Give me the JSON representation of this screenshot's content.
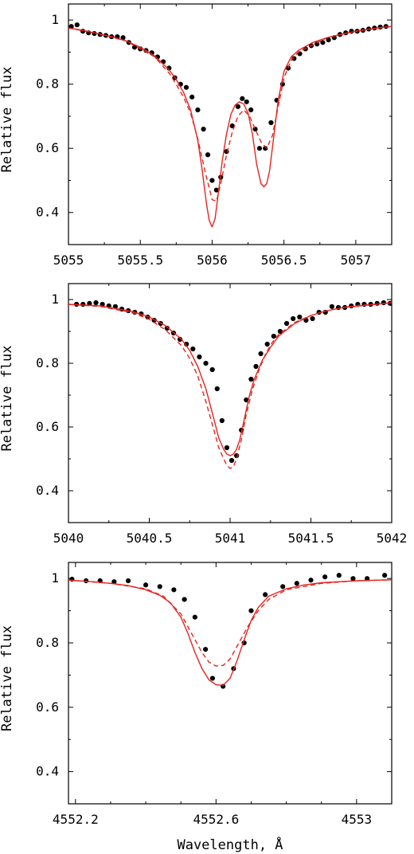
{
  "chart_data": [
    {
      "type": "line",
      "ylabel": "Relative flux",
      "xlabel": "",
      "xlim": [
        5055,
        5057.25
      ],
      "ylim": [
        0.3,
        1.05
      ],
      "xticks": [
        5055,
        5055.5,
        5056,
        5056.5,
        5057
      ],
      "xtick_labels": [
        "5055",
        "5055.5",
        "5056",
        "5056.5",
        "5057"
      ],
      "yticks": [
        0.4,
        0.6,
        0.8,
        1.0
      ],
      "ytick_labels": [
        "0.4",
        "0.6",
        "0.8",
        "1"
      ],
      "colors": {
        "model": "#e8231f",
        "observed": "#000000"
      },
      "series": [
        {
          "style": "points",
          "x": [
            5055.02,
            5055.06,
            5055.1,
            5055.14,
            5055.18,
            5055.22,
            5055.26,
            5055.3,
            5055.34,
            5055.38,
            5055.42,
            5055.46,
            5055.5,
            5055.54,
            5055.58,
            5055.62,
            5055.66,
            5055.7,
            5055.74,
            5055.78,
            5055.82,
            5055.86,
            5055.9,
            5055.94,
            5055.97,
            5056.0,
            5056.03,
            5056.06,
            5056.1,
            5056.14,
            5056.18,
            5056.21,
            5056.24,
            5056.27,
            5056.3,
            5056.33,
            5056.37,
            5056.41,
            5056.45,
            5056.49,
            5056.53,
            5056.57,
            5056.61,
            5056.65,
            5056.69,
            5056.73,
            5056.77,
            5056.81,
            5056.85,
            5056.89,
            5056.93,
            5056.97,
            5057.01,
            5057.05,
            5057.09,
            5057.13,
            5057.17,
            5057.21
          ],
          "y": [
            0.98,
            0.985,
            0.965,
            0.96,
            0.958,
            0.955,
            0.952,
            0.948,
            0.948,
            0.945,
            0.93,
            0.915,
            0.91,
            0.905,
            0.898,
            0.885,
            0.87,
            0.85,
            0.82,
            0.8,
            0.79,
            0.76,
            0.72,
            0.66,
            0.58,
            0.5,
            0.47,
            0.51,
            0.59,
            0.67,
            0.73,
            0.755,
            0.745,
            0.72,
            0.66,
            0.6,
            0.6,
            0.68,
            0.75,
            0.8,
            0.85,
            0.88,
            0.895,
            0.91,
            0.92,
            0.925,
            0.93,
            0.938,
            0.945,
            0.955,
            0.96,
            0.965,
            0.965,
            0.968,
            0.972,
            0.975,
            0.978,
            0.98
          ]
        },
        {
          "style": "solid",
          "x": [
            5055.0,
            5055.1,
            5055.2,
            5055.3,
            5055.4,
            5055.5,
            5055.6,
            5055.7,
            5055.75,
            5055.8,
            5055.85,
            5055.9,
            5055.93,
            5055.96,
            5055.98,
            5056.0,
            5056.02,
            5056.04,
            5056.07,
            5056.1,
            5056.13,
            5056.16,
            5056.19,
            5056.22,
            5056.25,
            5056.28,
            5056.31,
            5056.34,
            5056.36,
            5056.38,
            5056.4,
            5056.43,
            5056.46,
            5056.5,
            5056.55,
            5056.6,
            5056.7,
            5056.8,
            5056.9,
            5057.0,
            5057.1,
            5057.2,
            5057.25
          ],
          "y": [
            0.975,
            0.968,
            0.958,
            0.948,
            0.935,
            0.915,
            0.888,
            0.845,
            0.815,
            0.775,
            0.72,
            0.625,
            0.535,
            0.43,
            0.375,
            0.355,
            0.38,
            0.45,
            0.56,
            0.645,
            0.705,
            0.735,
            0.745,
            0.738,
            0.71,
            0.645,
            0.55,
            0.49,
            0.48,
            0.49,
            0.53,
            0.64,
            0.75,
            0.84,
            0.885,
            0.905,
            0.93,
            0.945,
            0.956,
            0.965,
            0.972,
            0.978,
            0.98
          ]
        },
        {
          "style": "dashed",
          "x": [
            5055.0,
            5055.2,
            5055.4,
            5055.6,
            5055.7,
            5055.75,
            5055.8,
            5055.85,
            5055.9,
            5055.95,
            5056.0,
            5056.03,
            5056.06,
            5056.1,
            5056.14,
            5056.18,
            5056.22,
            5056.26,
            5056.3,
            5056.34,
            5056.38,
            5056.42,
            5056.46,
            5056.5,
            5056.55,
            5056.6,
            5056.8,
            5057.0,
            5057.25
          ],
          "y": [
            0.975,
            0.958,
            0.935,
            0.885,
            0.835,
            0.8,
            0.76,
            0.71,
            0.63,
            0.53,
            0.44,
            0.435,
            0.49,
            0.58,
            0.65,
            0.7,
            0.72,
            0.7,
            0.66,
            0.62,
            0.6,
            0.64,
            0.73,
            0.82,
            0.875,
            0.9,
            0.945,
            0.965,
            0.98
          ]
        }
      ]
    },
    {
      "type": "line",
      "ylabel": "Relative flux",
      "xlabel": "",
      "xlim": [
        5040,
        5042
      ],
      "ylim": [
        0.3,
        1.05
      ],
      "xticks": [
        5040,
        5040.5,
        5041,
        5041.5,
        5042
      ],
      "xtick_labels": [
        "5040",
        "5040.5",
        "5041",
        "5041.5",
        "5042"
      ],
      "yticks": [
        0.4,
        0.6,
        0.8,
        1.0
      ],
      "ytick_labels": [
        "0.4",
        "0.6",
        "0.8",
        "1"
      ],
      "colors": {
        "model": "#e8231f",
        "observed": "#000000"
      },
      "series": [
        {
          "style": "points",
          "x": [
            5040.05,
            5040.09,
            5040.13,
            5040.17,
            5040.21,
            5040.25,
            5040.29,
            5040.33,
            5040.37,
            5040.41,
            5040.45,
            5040.49,
            5040.53,
            5040.57,
            5040.61,
            5040.65,
            5040.69,
            5040.73,
            5040.77,
            5040.81,
            5040.85,
            5040.89,
            5040.92,
            5040.95,
            5040.98,
            5041.01,
            5041.04,
            5041.07,
            5041.1,
            5041.13,
            5041.16,
            5041.19,
            5041.23,
            5041.27,
            5041.31,
            5041.35,
            5041.39,
            5041.43,
            5041.47,
            5041.51,
            5041.55,
            5041.59,
            5041.63,
            5041.67,
            5041.71,
            5041.75,
            5041.79,
            5041.83,
            5041.87,
            5041.91,
            5041.95,
            5041.99
          ],
          "y": [
            0.985,
            0.985,
            0.988,
            0.99,
            0.985,
            0.98,
            0.978,
            0.97,
            0.965,
            0.96,
            0.955,
            0.945,
            0.935,
            0.925,
            0.91,
            0.895,
            0.875,
            0.86,
            0.845,
            0.82,
            0.8,
            0.78,
            0.72,
            0.62,
            0.535,
            0.495,
            0.51,
            0.59,
            0.685,
            0.75,
            0.79,
            0.83,
            0.86,
            0.885,
            0.9,
            0.925,
            0.94,
            0.945,
            0.935,
            0.94,
            0.96,
            0.96,
            0.978,
            0.975,
            0.975,
            0.98,
            0.985,
            0.985,
            0.985,
            0.988,
            0.99,
            0.988
          ]
        },
        {
          "style": "solid",
          "x": [
            5040.0,
            5040.2,
            5040.4,
            5040.5,
            5040.6,
            5040.7,
            5040.75,
            5040.8,
            5040.85,
            5040.9,
            5040.93,
            5040.96,
            5040.98,
            5041.0,
            5041.02,
            5041.04,
            5041.06,
            5041.09,
            5041.12,
            5041.15,
            5041.2,
            5041.25,
            5041.3,
            5041.4,
            5041.5,
            5041.6,
            5041.7,
            5041.8,
            5041.9,
            5042.0
          ],
          "y": [
            0.985,
            0.98,
            0.962,
            0.945,
            0.918,
            0.875,
            0.84,
            0.79,
            0.72,
            0.625,
            0.565,
            0.53,
            0.515,
            0.51,
            0.515,
            0.53,
            0.56,
            0.63,
            0.7,
            0.75,
            0.81,
            0.85,
            0.885,
            0.925,
            0.95,
            0.965,
            0.975,
            0.98,
            0.985,
            0.99
          ]
        },
        {
          "style": "dashed",
          "x": [
            5040.0,
            5040.2,
            5040.4,
            5040.5,
            5040.6,
            5040.7,
            5040.75,
            5040.8,
            5040.85,
            5040.9,
            5040.93,
            5040.96,
            5040.98,
            5041.0,
            5041.02,
            5041.04,
            5041.07,
            5041.1,
            5041.14,
            5041.18,
            5041.22,
            5041.26,
            5041.3,
            5041.4,
            5041.5,
            5041.6,
            5041.7,
            5041.8,
            5041.9,
            5042.0
          ],
          "y": [
            0.985,
            0.978,
            0.958,
            0.938,
            0.905,
            0.855,
            0.815,
            0.76,
            0.68,
            0.59,
            0.535,
            0.5,
            0.48,
            0.47,
            0.475,
            0.5,
            0.56,
            0.64,
            0.72,
            0.78,
            0.83,
            0.865,
            0.89,
            0.928,
            0.95,
            0.965,
            0.975,
            0.982,
            0.985,
            0.99
          ]
        }
      ]
    },
    {
      "type": "line",
      "ylabel": "Relative flux",
      "xlabel": "Wavelength, Å",
      "xlim": [
        4552.18,
        4553.1
      ],
      "ylim": [
        0.3,
        1.05
      ],
      "xticks": [
        4552.2,
        4552.6,
        4553.0
      ],
      "xtick_labels": [
        "4552.2",
        "4552.6",
        "4553"
      ],
      "yticks": [
        0.4,
        0.6,
        0.8,
        1.0
      ],
      "ytick_labels": [
        "0.4",
        "0.6",
        "0.8",
        "1"
      ],
      "colors": {
        "model": "#e8231f",
        "observed": "#000000"
      },
      "series": [
        {
          "style": "points",
          "x": [
            4552.19,
            4552.23,
            4552.27,
            4552.31,
            4552.35,
            4552.4,
            4552.44,
            4552.48,
            4552.51,
            4552.54,
            4552.57,
            4552.59,
            4552.62,
            4552.65,
            4552.68,
            4552.7,
            4552.74,
            4552.79,
            4552.83,
            4552.87,
            4552.91,
            4552.95,
            4552.99,
            4553.03,
            4553.08
          ],
          "y": [
            0.998,
            0.993,
            0.993,
            0.99,
            0.993,
            0.98,
            0.975,
            0.965,
            0.935,
            0.88,
            0.78,
            0.69,
            0.665,
            0.72,
            0.8,
            0.9,
            0.95,
            0.975,
            0.985,
            0.995,
            1.005,
            1.01,
            1.0,
            1.0,
            1.01
          ]
        },
        {
          "style": "solid",
          "x": [
            4552.18,
            4552.25,
            4552.3,
            4552.35,
            4552.4,
            4552.44,
            4552.47,
            4552.5,
            4552.52,
            4552.54,
            4552.56,
            4552.58,
            4552.6,
            4552.62,
            4552.64,
            4552.66,
            4552.68,
            4552.7,
            4552.72,
            4552.75,
            4552.8,
            4552.85,
            4552.9,
            4552.95,
            4553.0,
            4553.1
          ],
          "y": [
            0.995,
            0.99,
            0.985,
            0.978,
            0.965,
            0.948,
            0.925,
            0.88,
            0.83,
            0.77,
            0.72,
            0.685,
            0.67,
            0.668,
            0.69,
            0.745,
            0.81,
            0.87,
            0.91,
            0.945,
            0.968,
            0.98,
            0.987,
            0.99,
            0.993,
            0.996
          ]
        },
        {
          "style": "dashed",
          "x": [
            4552.18,
            4552.3,
            4552.4,
            4552.45,
            4552.5,
            4552.53,
            4552.56,
            4552.58,
            4552.6,
            4552.62,
            4552.64,
            4552.66,
            4552.69,
            4552.72,
            4552.75,
            4552.8,
            4552.9,
            4553.0,
            4553.1
          ],
          "y": [
            0.995,
            0.985,
            0.968,
            0.945,
            0.89,
            0.83,
            0.77,
            0.74,
            0.728,
            0.73,
            0.75,
            0.79,
            0.85,
            0.9,
            0.935,
            0.965,
            0.985,
            0.993,
            0.996
          ]
        }
      ]
    }
  ]
}
